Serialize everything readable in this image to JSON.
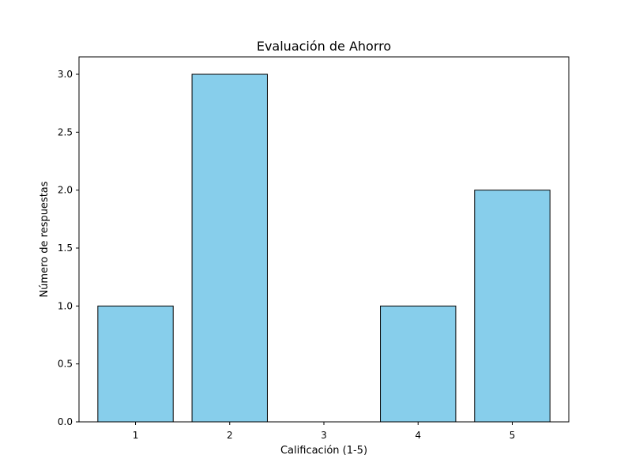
{
  "chart_data": {
    "type": "bar",
    "title": "Evaluación de Ahorro",
    "xlabel": "Calificación (1-5)",
    "ylabel": "Número de respuestas",
    "categories": [
      "1",
      "2",
      "3",
      "4",
      "5"
    ],
    "values": [
      1,
      3,
      0,
      1,
      2
    ],
    "ylim": [
      0,
      3.15
    ],
    "yticks": [
      "0.0",
      "0.5",
      "1.0",
      "1.5",
      "2.0",
      "2.5",
      "3.0"
    ],
    "grid": false,
    "bar_color": "#87CEEB",
    "edge_color": "#000000"
  }
}
